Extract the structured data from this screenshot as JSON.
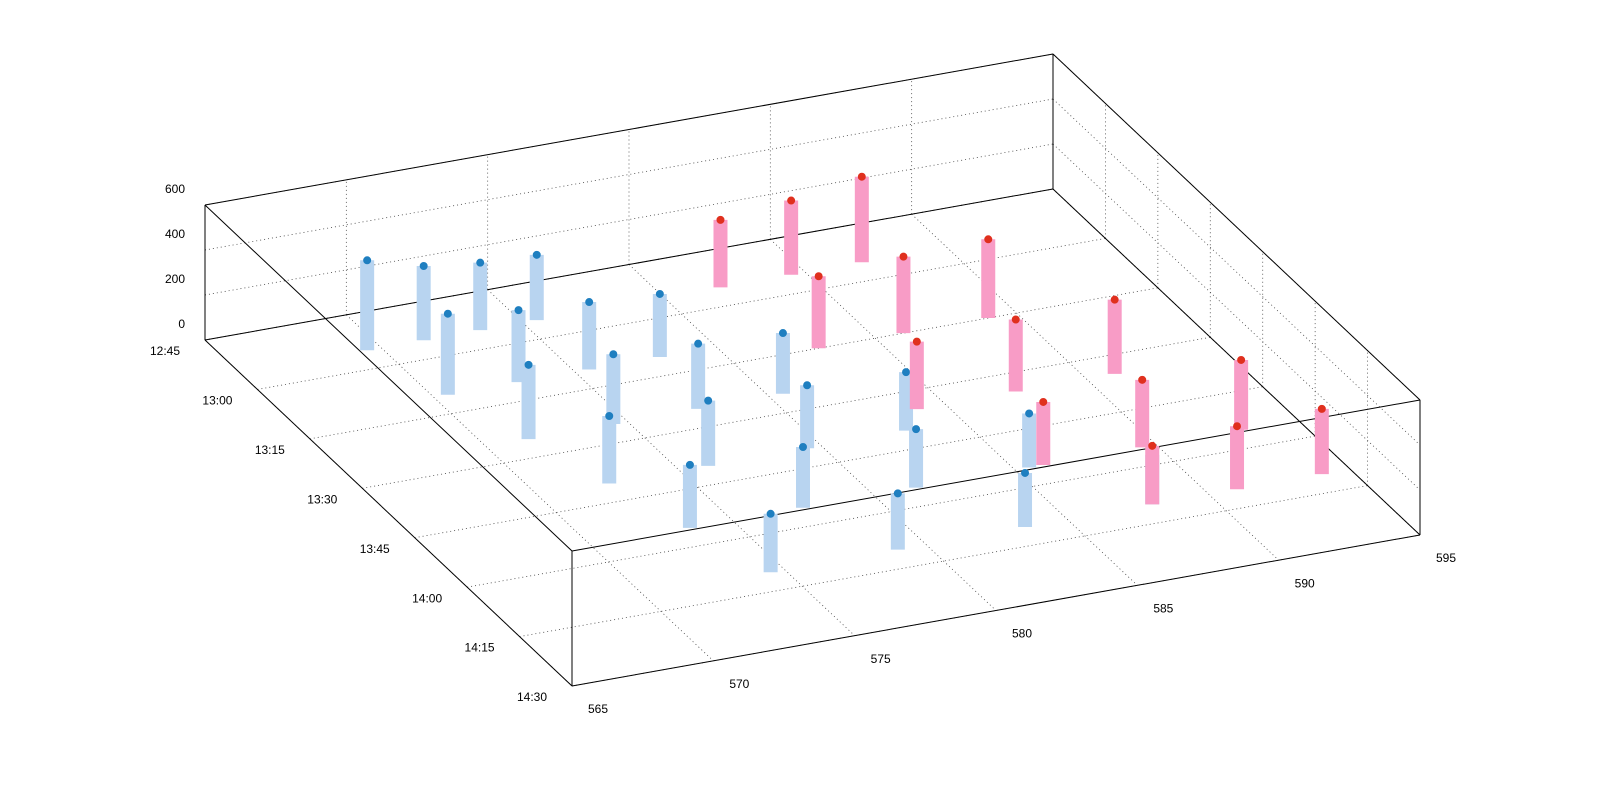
{
  "chart_data": {
    "type": "scatter3d",
    "xlim": [
      565,
      595
    ],
    "xticks": [
      565,
      570,
      575,
      580,
      585,
      590,
      595
    ],
    "ylim": [
      765,
      870
    ],
    "yticks": [
      {
        "value": 765,
        "label": "12:45"
      },
      {
        "value": 780,
        "label": "13:00"
      },
      {
        "value": 795,
        "label": "13:15"
      },
      {
        "value": 810,
        "label": "13:30"
      },
      {
        "value": 825,
        "label": "13:45"
      },
      {
        "value": 840,
        "label": "14:00"
      },
      {
        "value": 855,
        "label": "14:15"
      },
      {
        "value": 870,
        "label": "14:30"
      }
    ],
    "zlim": [
      0,
      600
    ],
    "zticks": [
      0,
      200,
      400,
      600
    ],
    "grid": true,
    "series": [
      {
        "color": "#1f7fc0",
        "stem_color": "#b8d4f0",
        "x": [
          569.5,
          571.5,
          573.5,
          575.5,
          570.5,
          573,
          575.5,
          578,
          571.5,
          574.5,
          577.5,
          580.5,
          572.5,
          576,
          579.5,
          583,
          573.5,
          577.5,
          581.5,
          585.5,
          574.5,
          579,
          583.5,
          588
        ],
        "y": [
          775,
          775,
          775,
          775,
          790,
          790,
          790,
          790,
          805,
          805,
          805,
          805,
          820,
          820,
          820,
          820,
          835,
          835,
          835,
          835,
          850,
          850,
          850,
          850
        ],
        "z": [
          400,
          330,
          300,
          290,
          360,
          320,
          300,
          280,
          330,
          310,
          290,
          270,
          300,
          290,
          280,
          260,
          280,
          270,
          260,
          240,
          260,
          250,
          240,
          220
        ]
      },
      {
        "color": "#e0301e",
        "stem_color": "#f89cc6",
        "x": [
          582,
          584.5,
          587,
          583,
          586,
          589,
          584,
          587.5,
          591,
          586,
          589.5,
          593,
          588,
          591,
          594
        ],
        "y": [
          775,
          775,
          775,
          795,
          795,
          795,
          815,
          815,
          815,
          835,
          835,
          835,
          850,
          850,
          850
        ],
        "z": [
          300,
          330,
          380,
          320,
          340,
          350,
          300,
          320,
          330,
          280,
          300,
          310,
          260,
          280,
          290
        ]
      }
    ]
  }
}
